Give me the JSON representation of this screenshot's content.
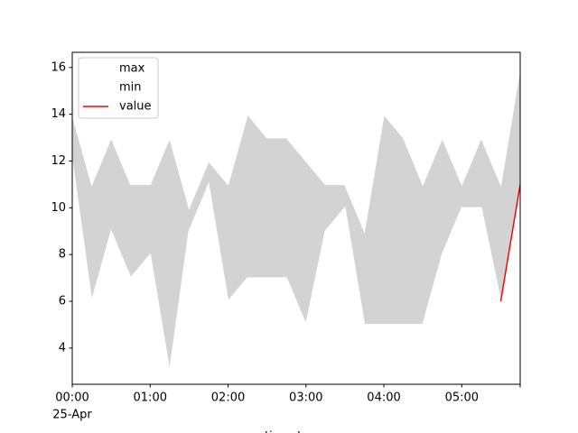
{
  "chart_data": {
    "type": "range-line",
    "x_label": "timestamp",
    "y_label": null,
    "x_date_label": "25-Apr",
    "x": [
      "00:00",
      "00:15",
      "00:30",
      "00:45",
      "01:00",
      "01:15",
      "01:30",
      "01:45",
      "02:00",
      "02:15",
      "02:30",
      "02:45",
      "03:00",
      "03:15",
      "03:30",
      "03:45",
      "04:00",
      "04:15",
      "04:30",
      "04:45",
      "05:00",
      "05:15",
      "05:30",
      "05:45"
    ],
    "series": [
      {
        "name": "max",
        "color": "#ffffff",
        "values": [
          14,
          11,
          13,
          11,
          11,
          13,
          10,
          12,
          11,
          14,
          13,
          13,
          12,
          11,
          11,
          9,
          14,
          13,
          11,
          13,
          11,
          13,
          11,
          16
        ]
      },
      {
        "name": "min",
        "color": "#ffffff",
        "values": [
          12,
          6,
          9,
          7,
          8,
          3,
          9,
          11,
          6,
          7,
          7,
          7,
          5,
          9,
          10,
          5,
          5,
          5,
          5,
          8,
          10,
          10,
          6,
          11
        ]
      },
      {
        "name": "value",
        "color": "#ff0000",
        "values": [
          null,
          null,
          null,
          null,
          null,
          null,
          null,
          null,
          null,
          null,
          null,
          null,
          null,
          null,
          null,
          null,
          null,
          null,
          null,
          null,
          null,
          null,
          6,
          11
        ]
      }
    ],
    "fill_color": "#d3d3d3",
    "xlim": [
      "00:00",
      "05:45"
    ],
    "xticks": [
      "00:00",
      "01:00",
      "02:00",
      "03:00",
      "04:00",
      "05:00"
    ],
    "ylim": [
      2.45,
      16.65
    ],
    "yticks": [
      4,
      6,
      8,
      10,
      12,
      14,
      16
    ],
    "grid": false,
    "legend": "upper left"
  }
}
